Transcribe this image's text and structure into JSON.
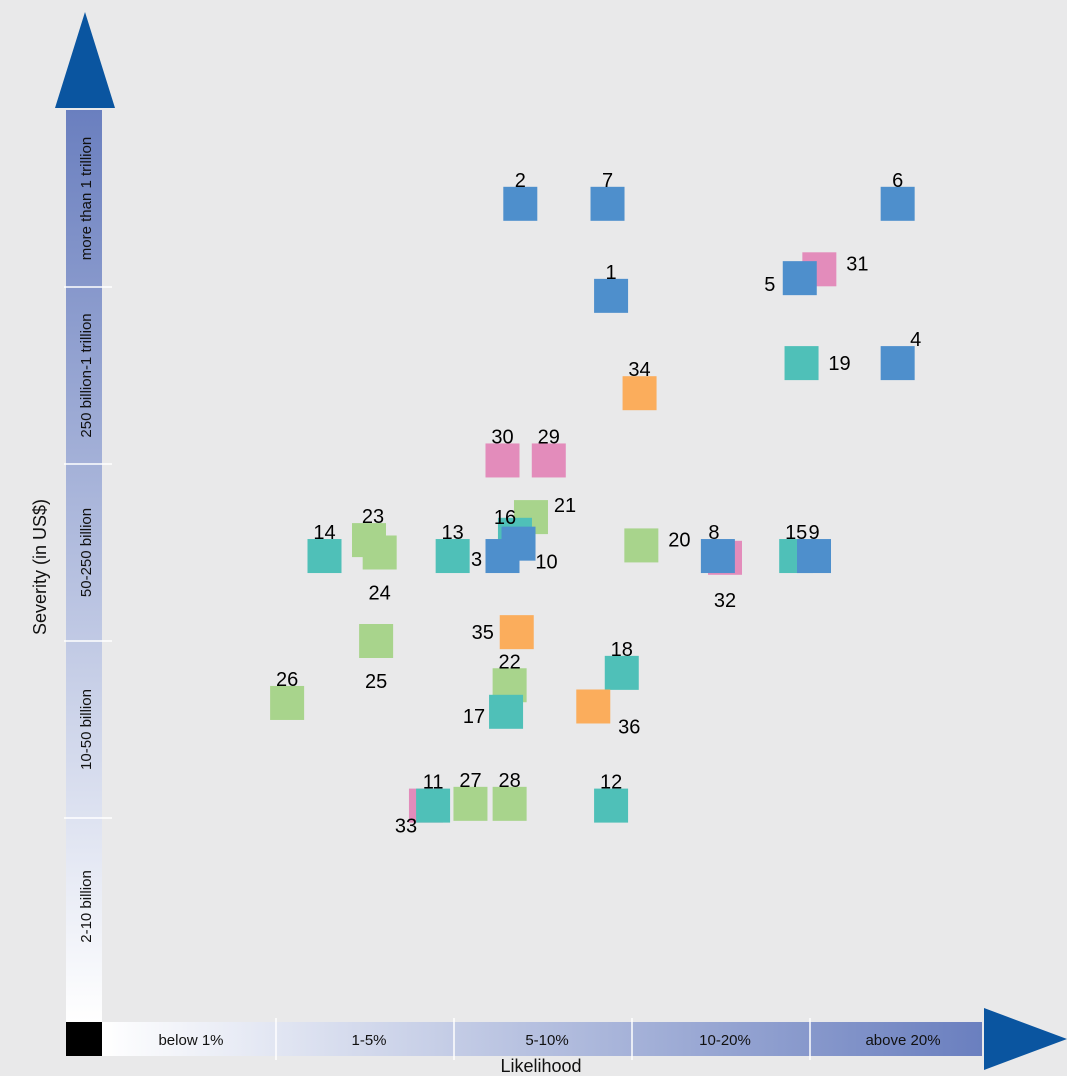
{
  "chart_data": {
    "type": "scatter",
    "title": "",
    "xlabel": "Likelihood",
    "ylabel": "Severity (in US$)",
    "x_categories": [
      "below 1%",
      "1-5%",
      "5-10%",
      "10-20%",
      "above 20%"
    ],
    "y_categories": [
      "2-10 billion",
      "10-50 billion",
      "50-250 billion",
      "250 billion-1 trillion",
      "more than 1 trillion"
    ],
    "x_range": [
      0,
      5
    ],
    "y_range": [
      0,
      5
    ],
    "grid": false,
    "legend": "none",
    "colors": {
      "blue": "#4e8fcc",
      "teal": "#4fc0b8",
      "green": "#a8d48c",
      "pink": "#e38cbb",
      "orange": "#fbad5c",
      "axis_arrow": "#0a55a0",
      "band_light": "#f4f5fb",
      "band_dark": "#6a7fbf"
    },
    "series": [
      {
        "color": "pink",
        "points": [
          {
            "id": "30",
            "x": 2.25,
            "y": 3.02
          },
          {
            "id": "29",
            "x": 2.51,
            "y": 3.02
          },
          {
            "id": "31",
            "x": 4.03,
            "y": 4.1
          },
          {
            "id": "32",
            "x": 3.5,
            "y": 2.47
          },
          {
            "id": "33",
            "x": 1.82,
            "y": 1.07
          }
        ]
      },
      {
        "color": "green",
        "points": [
          {
            "id": "21",
            "x": 2.41,
            "y": 2.7
          },
          {
            "id": "23",
            "x": 1.5,
            "y": 2.57
          },
          {
            "id": "24",
            "x": 1.56,
            "y": 2.5
          },
          {
            "id": "20",
            "x": 3.03,
            "y": 2.54
          },
          {
            "id": "25",
            "x": 1.54,
            "y": 2.0
          },
          {
            "id": "26",
            "x": 1.04,
            "y": 1.65
          },
          {
            "id": "22",
            "x": 2.29,
            "y": 1.75
          },
          {
            "id": "27",
            "x": 2.07,
            "y": 1.08
          },
          {
            "id": "28",
            "x": 2.29,
            "y": 1.08
          }
        ]
      },
      {
        "color": "teal",
        "points": [
          {
            "id": "16",
            "x": 2.32,
            "y": 2.6
          },
          {
            "id": "14",
            "x": 1.25,
            "y": 2.48
          },
          {
            "id": "13",
            "x": 1.97,
            "y": 2.48
          },
          {
            "id": "15",
            "x": 3.9,
            "y": 2.48
          },
          {
            "id": "19",
            "x": 3.93,
            "y": 3.57
          },
          {
            "id": "18",
            "x": 2.92,
            "y": 1.82
          },
          {
            "id": "17",
            "x": 2.27,
            "y": 1.6
          },
          {
            "id": "11",
            "x": 1.86,
            "y": 1.07
          },
          {
            "id": "12",
            "x": 2.86,
            "y": 1.07
          }
        ]
      },
      {
        "color": "orange",
        "points": [
          {
            "id": "34",
            "x": 3.02,
            "y": 3.4
          },
          {
            "id": "35",
            "x": 2.33,
            "y": 2.05
          },
          {
            "id": "36",
            "x": 2.76,
            "y": 1.63
          }
        ]
      },
      {
        "color": "blue",
        "points": [
          {
            "id": "2",
            "x": 2.35,
            "y": 4.47
          },
          {
            "id": "7",
            "x": 2.84,
            "y": 4.47
          },
          {
            "id": "6",
            "x": 4.47,
            "y": 4.47
          },
          {
            "id": "1",
            "x": 2.86,
            "y": 3.95
          },
          {
            "id": "5",
            "x": 3.92,
            "y": 4.05
          },
          {
            "id": "4",
            "x": 4.47,
            "y": 3.57
          },
          {
            "id": "10",
            "x": 2.34,
            "y": 2.55
          },
          {
            "id": "3",
            "x": 2.25,
            "y": 2.48
          },
          {
            "id": "8",
            "x": 3.46,
            "y": 2.48
          },
          {
            "id": "9",
            "x": 4.0,
            "y": 2.48
          }
        ]
      }
    ]
  }
}
